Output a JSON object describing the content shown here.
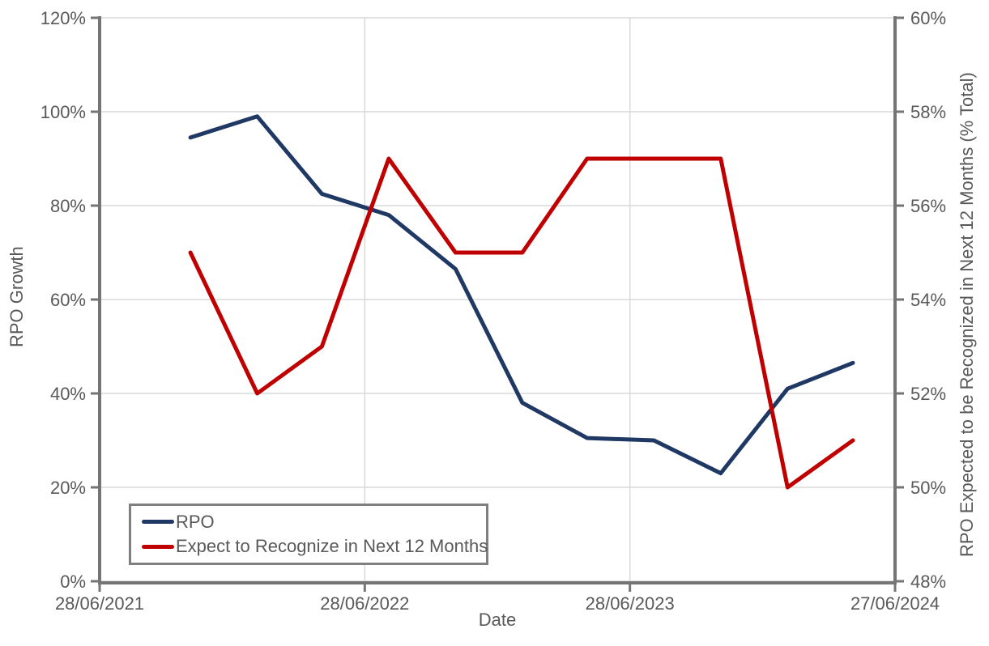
{
  "page": {
    "background": "#FFFFFF"
  },
  "chart_data": {
    "type": "line",
    "title": "",
    "xlabel": "Date",
    "grid": true,
    "legend_position": "bottom-left",
    "x_axis": {
      "start_date": "2021-06-28",
      "end_date": "2024-06-27",
      "ticks": [
        {
          "date": "2021-06-28",
          "label": "28/06/2021"
        },
        {
          "date": "2022-06-28",
          "label": "28/06/2022"
        },
        {
          "date": "2023-06-28",
          "label": "28/06/2023"
        },
        {
          "date": "2024-06-27",
          "label": "27/06/2024"
        }
      ]
    },
    "left_axis": {
      "label": "RPO Growth",
      "min": 0,
      "max": 120,
      "ticks": [
        {
          "value": 0,
          "label": "0%"
        },
        {
          "value": 20,
          "label": "20%"
        },
        {
          "value": 40,
          "label": "40%"
        },
        {
          "value": 60,
          "label": "60%"
        },
        {
          "value": 80,
          "label": "80%"
        },
        {
          "value": 100,
          "label": "100%"
        },
        {
          "value": 120,
          "label": "120%"
        }
      ]
    },
    "right_axis": {
      "label": "RPO Expected to be Recognized in Next 12 Months (% Total)",
      "min": 48,
      "max": 60,
      "ticks": [
        {
          "value": 48,
          "label": "48%"
        },
        {
          "value": 50,
          "label": "50%"
        },
        {
          "value": 52,
          "label": "52%"
        },
        {
          "value": 54,
          "label": "54%"
        },
        {
          "value": 56,
          "label": "56%"
        },
        {
          "value": 58,
          "label": "58%"
        },
        {
          "value": 60,
          "label": "60%"
        }
      ]
    },
    "series": [
      {
        "name": "RPO",
        "axis": "left",
        "color": "#1F3864",
        "points": [
          {
            "date": "2021-10-31",
            "value": 94.5
          },
          {
            "date": "2022-01-31",
            "value": 99
          },
          {
            "date": "2022-04-30",
            "value": 82.5
          },
          {
            "date": "2022-07-31",
            "value": 78
          },
          {
            "date": "2022-10-31",
            "value": 66.5
          },
          {
            "date": "2023-01-31",
            "value": 38
          },
          {
            "date": "2023-04-30",
            "value": 30.5
          },
          {
            "date": "2023-07-31",
            "value": 30
          },
          {
            "date": "2023-10-31",
            "value": 23
          },
          {
            "date": "2024-01-31",
            "value": 41
          },
          {
            "date": "2024-04-30",
            "value": 46.5
          }
        ]
      },
      {
        "name": "Expect to Recognize in Next 12 Months",
        "axis": "right",
        "color": "#C00000",
        "points": [
          {
            "date": "2021-10-31",
            "value": 55
          },
          {
            "date": "2022-01-31",
            "value": 52
          },
          {
            "date": "2022-04-30",
            "value": 53
          },
          {
            "date": "2022-07-31",
            "value": 57
          },
          {
            "date": "2022-10-31",
            "value": 55
          },
          {
            "date": "2023-01-31",
            "value": 55
          },
          {
            "date": "2023-04-30",
            "value": 57
          },
          {
            "date": "2023-07-31",
            "value": 57
          },
          {
            "date": "2023-10-31",
            "value": 57
          },
          {
            "date": "2024-01-31",
            "value": 50
          },
          {
            "date": "2024-04-30",
            "value": 51
          }
        ]
      }
    ]
  }
}
